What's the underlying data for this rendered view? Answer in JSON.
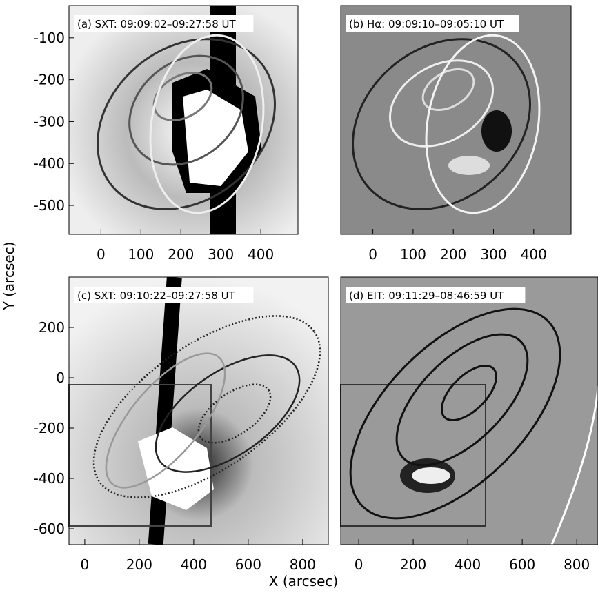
{
  "figure": {
    "xlabel": "X (arcsec)",
    "ylabel": "Y (arcsec)",
    "panels": [
      {
        "title": "(a) SXT: 09:09:02–09:27:58 UT",
        "xlim": [
          -80,
          493
        ],
        "ylim": [
          -569,
          -23
        ],
        "xticks": [
          0,
          100,
          200,
          300,
          400
        ],
        "yticks": [
          -100,
          -200,
          -300,
          -400,
          -500
        ]
      },
      {
        "title": "(b) Hα: 09:09:10–09:05:10 UT",
        "xlim": [
          -80,
          493
        ],
        "xticks": [
          0,
          100,
          200,
          300,
          400
        ]
      },
      {
        "title": "(c) SXT: 09:10:22–09:27:58 UT",
        "xlim": [
          -58,
          894
        ],
        "ylim": [
          -663,
          400
        ],
        "xticks": [
          0,
          200,
          400,
          600,
          800
        ],
        "yticks": [
          200,
          0,
          -200,
          -400,
          -600
        ]
      },
      {
        "title": "(d) EIT: 09:11:29–08:46:59 UT",
        "xlim": [
          -66,
          878
        ],
        "xticks": [
          0,
          200,
          400,
          600,
          800
        ]
      }
    ]
  }
}
